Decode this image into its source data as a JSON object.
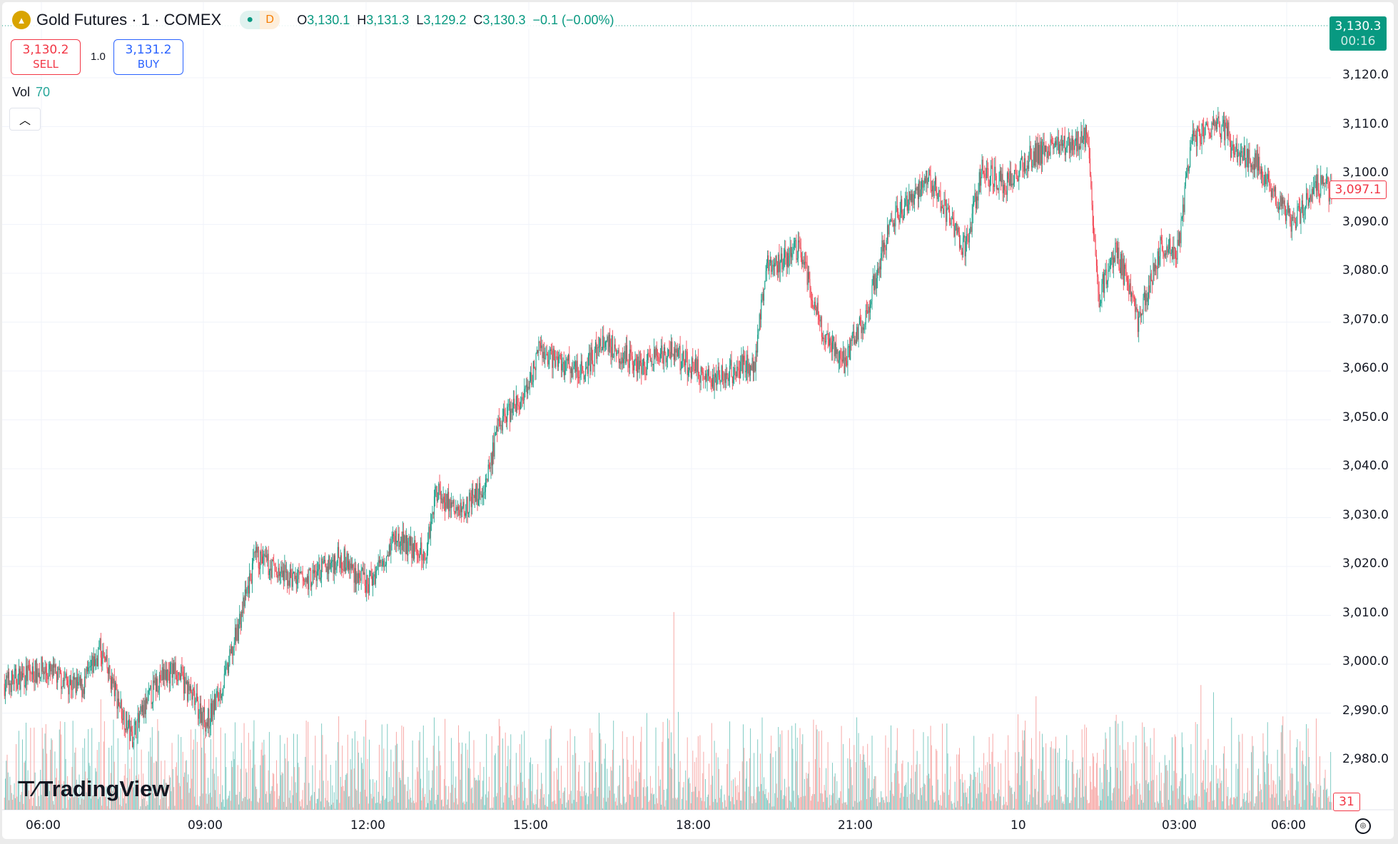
{
  "header": {
    "symbol": "Gold Futures · 1 · COMEX",
    "status_dot": "●",
    "session": "D",
    "o_label": "O",
    "open": "3,130.1",
    "h_label": "H",
    "high": "3,131.3",
    "l_label": "L",
    "low": "3,129.2",
    "c_label": "C",
    "close": "3,130.3",
    "change": "−0.1 (−0.00%)"
  },
  "trade": {
    "sell_price": "3,130.2",
    "sell_label": "SELL",
    "quantity": "1.0",
    "buy_price": "3,131.2",
    "buy_label": "BUY"
  },
  "volume": {
    "label": "Vol",
    "value": "70"
  },
  "price_axis": {
    "labels": [
      "3,120.0",
      "3,110.0",
      "3,100.0",
      "3,090.0",
      "3,080.0",
      "3,070.0",
      "3,060.0",
      "3,050.0",
      "3,040.0",
      "3,030.0",
      "3,020.0",
      "3,010.0",
      "3,000.0",
      "2,990.0",
      "2,980.0"
    ],
    "last_price": "3,130.3",
    "countdown": "00:16",
    "cursor_price": "3,097.1",
    "volume_tag": "31"
  },
  "time_axis": {
    "labels": [
      "06:00",
      "09:00",
      "12:00",
      "15:00",
      "18:00",
      "21:00",
      "10",
      "03:00",
      "06:00"
    ]
  },
  "watermark": "TradingView",
  "colors": {
    "up": "#089981",
    "down": "#f23645",
    "buy": "#2962ff",
    "vol_up": "#80cbc4",
    "vol_down": "#f7a9a7"
  },
  "chart_data": {
    "type": "candlestick",
    "interval": "1 minute",
    "yrange": [
      2978,
      3133
    ],
    "path": [
      [
        "9 05:19",
        2996
      ],
      [
        "9 06:00",
        2999
      ],
      [
        "9 06:45",
        2995
      ],
      [
        "9 07:05",
        3003
      ],
      [
        "9 07:40",
        2985
      ],
      [
        "9 08:10",
        2997
      ],
      [
        "9 08:29",
        2999
      ],
      [
        "9 09:04",
        2988
      ],
      [
        "9 09:24",
        2997
      ],
      [
        "9 09:58",
        3022
      ],
      [
        "9 10:28",
        3018
      ],
      [
        "9 10:53",
        3017
      ],
      [
        "9 11:32",
        3022
      ],
      [
        "9 12:02",
        3016
      ],
      [
        "9 12:32",
        3026
      ],
      [
        "9 13:06",
        3022
      ],
      [
        "9 13:18",
        3036
      ],
      [
        "9 13:41",
        3031
      ],
      [
        "9 14:11",
        3036
      ],
      [
        "9 14:30",
        3050
      ],
      [
        "9 15:00",
        3055
      ],
      [
        "9 15:10",
        3064
      ],
      [
        "9 15:59",
        3060
      ],
      [
        "9 16:24",
        3066
      ],
      [
        "9 17:09",
        3061
      ],
      [
        "9 17:38",
        3064
      ],
      [
        "9 18:23",
        3058
      ],
      [
        "9 19:12",
        3062
      ],
      [
        "9 19:24",
        3081
      ],
      [
        "9 20:02",
        3085
      ],
      [
        "9 20:26",
        3068
      ],
      [
        "9 20:51",
        3062
      ],
      [
        "9 21:16",
        3072
      ],
      [
        "9 21:41",
        3090
      ],
      [
        "9 22:25",
        3100
      ],
      [
        "9 23:05",
        3085
      ],
      [
        "9 23:24",
        3101
      ],
      [
        "9 23:49",
        3098
      ],
      [
        "10 00:19",
        3104
      ],
      [
        "10 01:03",
        3107
      ],
      [
        "10 01:21",
        3108
      ],
      [
        "10 01:33",
        3075
      ],
      [
        "10 01:53",
        3085
      ],
      [
        "10 02:17",
        3070
      ],
      [
        "10 02:42",
        3085
      ],
      [
        "10 03:02",
        3085
      ],
      [
        "10 03:17",
        3108
      ],
      [
        "10 03:46",
        3110
      ],
      [
        "10 05:31",
        3103
      ],
      [
        "10 05:41",
        3098
      ],
      [
        "10 06:10",
        3090
      ],
      [
        "10 06:35",
        3098
      ],
      [
        "10 06:52",
        3097
      ]
    ]
  }
}
